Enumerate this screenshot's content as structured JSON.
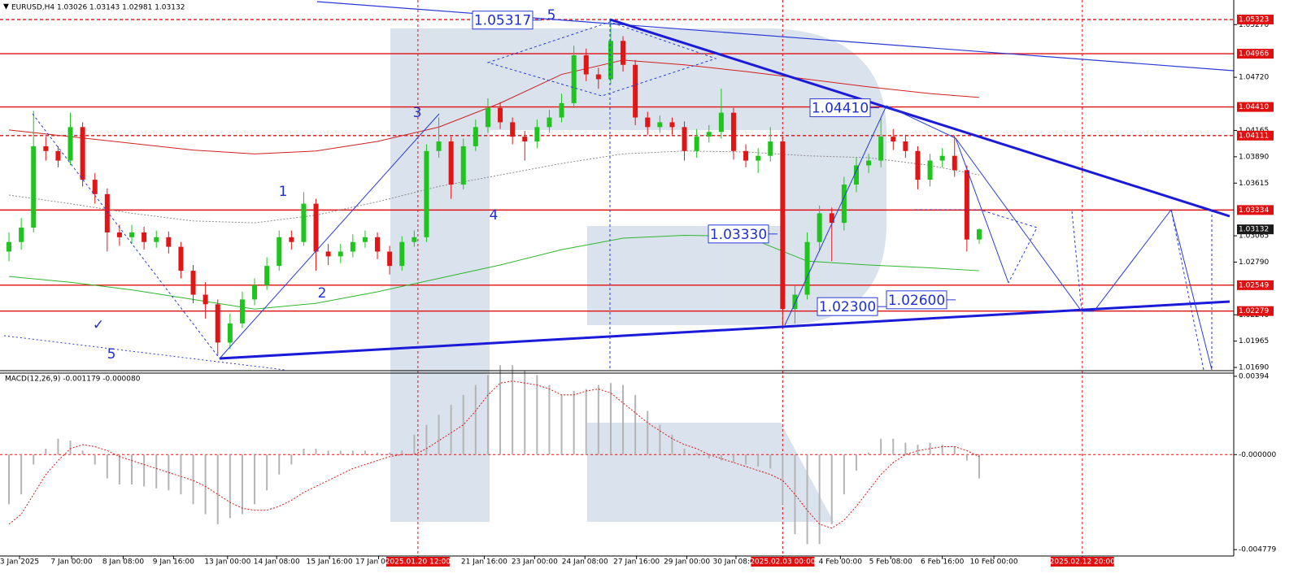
{
  "chart_data": {
    "type": "candlestick",
    "header": "EURUSD,H4  1.03026 1.03143 1.02981 1.03132",
    "colors": {
      "up": "#1fc41f",
      "down": "#e01515",
      "level": "#e01010",
      "vline": "#e01010",
      "last": "#1a1a1a"
    },
    "xlim": [
      -0.73,
      99.73
    ],
    "xticks": [
      {
        "value": 0.86,
        "label": "3 Jan 2025"
      },
      {
        "value": 5.1,
        "label": "7 Jan 00:00"
      },
      {
        "value": 9.3,
        "label": "8 Jan 08:00"
      },
      {
        "value": 13.4,
        "label": "9 Jan 16:00"
      },
      {
        "value": 17.8,
        "label": "13 Jan 00:00"
      },
      {
        "value": 21.8,
        "label": "14 Jan 08:00"
      },
      {
        "value": 26.1,
        "label": "15 Jan 16:00"
      },
      {
        "value": 30.1,
        "label": "17 Jan 00:00"
      },
      {
        "value": 33.3,
        "label": "2025.01.20 12:00"
      },
      {
        "value": 38.7,
        "label": "21 Jan 16:00"
      },
      {
        "value": 42.8,
        "label": "23 Jan 00:00"
      },
      {
        "value": 46.9,
        "label": "24 Jan 08:00"
      },
      {
        "value": 51.1,
        "label": "27 Jan 16:00"
      },
      {
        "value": 55.2,
        "label": "29 Jan 00:00"
      },
      {
        "value": 59.2,
        "label": "30 Jan 08:00"
      },
      {
        "value": 63,
        "label": "2025.02.03 00:00"
      },
      {
        "value": 67.7,
        "label": "4 Feb 00:00"
      },
      {
        "value": 71.8,
        "label": "5 Feb 08:00"
      },
      {
        "value": 76,
        "label": "6 Feb 16:00"
      },
      {
        "value": 80.2,
        "label": "10 Feb 00:00"
      },
      {
        "value": 87.4,
        "label": "2025.02.12 20:00"
      }
    ],
    "vlines": [
      33.3,
      63,
      87.4
    ],
    "ylim": [
      1.01665,
      1.05527
    ],
    "yticks": [
      {
        "value": 1.0527,
        "label": "1.05270"
      },
      {
        "value": 1.0472,
        "label": "1.04720"
      },
      1.04165,
      {
        "value": 1.0389,
        "label": "1.03890"
      },
      1.03615,
      1.03065,
      {
        "value": 1.0279,
        "label": "1.02790"
      },
      {
        "value": 1.0224,
        "label": "1.02240"
      },
      1.01965,
      {
        "value": 1.0169,
        "label": "1.01690"
      }
    ],
    "levels": [
      {
        "value": 1.05323,
        "dashed": true
      },
      {
        "value": 1.04966,
        "dashed": false
      },
      {
        "value": 1.0441,
        "label": "1.04410",
        "dashed": false
      },
      {
        "value": 1.04111,
        "dashed": true
      },
      {
        "value": 1.03334,
        "dashed": false
      },
      {
        "value": 1.02549,
        "dashed": false
      },
      {
        "value": 1.02279,
        "dashed": false
      }
    ],
    "last_price": 1.03132,
    "candles": {
      "open": [
        1.029,
        1.03,
        1.0315,
        1.04,
        1.0395,
        1.0385,
        1.042,
        1.0365,
        1.035,
        1.031,
        1.0305,
        1.031,
        1.03,
        1.0305,
        1.0295,
        1.027,
        1.0245,
        1.0235,
        1.0195,
        1.0215,
        1.024,
        1.0255,
        1.0275,
        1.0305,
        1.03,
        1.034,
        1.029,
        1.0285,
        1.029,
        1.03,
        1.0305,
        1.029,
        1.0275,
        1.03,
        1.0305,
        1.0395,
        1.0405,
        1.036,
        1.04,
        1.042,
        1.044,
        1.0425,
        1.041,
        1.0405,
        1.042,
        1.043,
        1.0445,
        1.0495,
        1.0475,
        1.047,
        1.051,
        1.0485,
        1.043,
        1.042,
        1.0425,
        1.042,
        1.0395,
        1.041,
        1.0415,
        1.0435,
        1.0395,
        1.0385,
        1.039,
        1.0405,
        1.023,
        1.0245,
        1.03,
        1.033,
        1.032,
        1.036,
        1.038,
        1.0385,
        1.041,
        1.0405,
        1.0395,
        1.0365,
        1.0385,
        1.039,
        1.0375,
        1.03026
      ],
      "high": [
        1.031,
        1.0325,
        1.0437,
        1.041,
        1.04,
        1.0435,
        1.0425,
        1.0372,
        1.0356,
        1.0318,
        1.0318,
        1.0316,
        1.0312,
        1.0311,
        1.03,
        1.0276,
        1.0258,
        1.024,
        1.0225,
        1.0248,
        1.0262,
        1.0284,
        1.0312,
        1.0312,
        1.0352,
        1.0345,
        1.0298,
        1.0298,
        1.0308,
        1.0312,
        1.031,
        1.0296,
        1.0306,
        1.0312,
        1.0402,
        1.043,
        1.041,
        1.0408,
        1.0428,
        1.045,
        1.0446,
        1.043,
        1.0416,
        1.0428,
        1.0438,
        1.0455,
        1.0505,
        1.0502,
        1.0482,
        1.0532,
        1.0515,
        1.049,
        1.0436,
        1.0432,
        1.043,
        1.0426,
        1.0418,
        1.0422,
        1.046,
        1.044,
        1.0402,
        1.0398,
        1.042,
        1.041,
        1.0255,
        1.031,
        1.0338,
        1.0336,
        1.0368,
        1.0388,
        1.0392,
        1.043,
        1.0418,
        1.0412,
        1.04,
        1.0392,
        1.0398,
        1.0411,
        1.038,
        1.03143
      ],
      "low": [
        1.028,
        1.0292,
        1.031,
        1.0385,
        1.0378,
        1.038,
        1.0358,
        1.034,
        1.029,
        1.0296,
        1.0298,
        1.0292,
        1.0294,
        1.0288,
        1.0262,
        1.0236,
        1.022,
        1.0182,
        1.0188,
        1.021,
        1.0234,
        1.025,
        1.027,
        1.0292,
        1.0296,
        1.027,
        1.0276,
        1.0278,
        1.0284,
        1.0294,
        1.0282,
        1.0266,
        1.027,
        1.0295,
        1.03,
        1.0388,
        1.0345,
        1.0355,
        1.0395,
        1.0414,
        1.0418,
        1.0402,
        1.0385,
        1.0398,
        1.0414,
        1.0425,
        1.044,
        1.0468,
        1.046,
        1.0465,
        1.0478,
        1.0422,
        1.0412,
        1.0414,
        1.0412,
        1.0385,
        1.0388,
        1.0404,
        1.0408,
        1.0386,
        1.0378,
        1.0372,
        1.0384,
        1.021,
        1.0215,
        1.024,
        1.029,
        1.028,
        1.0312,
        1.0352,
        1.0372,
        1.0378,
        1.0396,
        1.0388,
        1.0355,
        1.0358,
        1.0378,
        1.0368,
        1.029,
        1.02981
      ],
      "close": [
        1.03,
        1.0315,
        1.04,
        1.0395,
        1.0385,
        1.042,
        1.0365,
        1.035,
        1.031,
        1.0305,
        1.031,
        1.03,
        1.0305,
        1.0295,
        1.027,
        1.0245,
        1.0235,
        1.0195,
        1.0215,
        1.024,
        1.0255,
        1.0275,
        1.0305,
        1.03,
        1.034,
        1.029,
        1.0285,
        1.029,
        1.03,
        1.0305,
        1.029,
        1.0275,
        1.03,
        1.0305,
        1.0395,
        1.0405,
        1.036,
        1.04,
        1.042,
        1.044,
        1.0425,
        1.041,
        1.0405,
        1.042,
        1.043,
        1.0445,
        1.0495,
        1.0475,
        1.047,
        1.051,
        1.0485,
        1.043,
        1.042,
        1.0425,
        1.042,
        1.0395,
        1.041,
        1.0415,
        1.0435,
        1.0395,
        1.0385,
        1.039,
        1.0405,
        1.023,
        1.0245,
        1.03,
        1.033,
        1.032,
        1.036,
        1.038,
        1.0385,
        1.041,
        1.0405,
        1.0395,
        1.0365,
        1.0385,
        1.039,
        1.0375,
        1.03026,
        1.03132
      ]
    },
    "ma": [
      {
        "color": "#d02020",
        "dashed": false,
        "x": [
          0,
          5,
          10,
          15,
          20,
          25,
          30,
          35,
          40,
          45,
          50,
          55,
          60,
          65,
          70,
          75,
          79
        ],
        "values": [
          1.0417,
          1.041,
          1.0403,
          1.0396,
          1.0392,
          1.0395,
          1.0405,
          1.042,
          1.0445,
          1.0475,
          1.049,
          1.0485,
          1.0478,
          1.047,
          1.0462,
          1.0455,
          1.0451
        ]
      },
      {
        "color": "#2fb52f",
        "dashed": false,
        "x": [
          0,
          5,
          10,
          15,
          20,
          25,
          30,
          35,
          40,
          45,
          50,
          55,
          60,
          65,
          70,
          75,
          79
        ],
        "values": [
          1.0264,
          1.0258,
          1.025,
          1.024,
          1.023,
          1.0236,
          1.0248,
          1.0262,
          1.0276,
          1.0292,
          1.0304,
          1.0307,
          1.0306,
          1.028,
          1.0276,
          1.0273,
          1.027
        ]
      },
      {
        "color": "#8a8a8a",
        "dashed": true,
        "x": [
          0,
          5,
          10,
          15,
          20,
          25,
          30,
          35,
          40,
          45,
          50,
          55,
          60,
          65,
          70,
          75,
          79
        ],
        "values": [
          1.0349,
          1.034,
          1.033,
          1.0322,
          1.032,
          1.0328,
          1.0342,
          1.0358,
          1.037,
          1.0382,
          1.0392,
          1.0395,
          1.0394,
          1.039,
          1.0388,
          1.038,
          1.037
        ]
      }
    ],
    "annotations": [
      1.05317,
      {
        "value": 1.0441,
        "label": "1.04410"
      },
      {
        "value": 1.0333,
        "label": "1.03330"
      },
      {
        "value": 1.026,
        "label": "1.02600"
      },
      {
        "value": 1.023,
        "label": "1.02300"
      }
    ],
    "wave_labels": [
      "5",
      "3",
      "1",
      "4",
      "2",
      "5",
      "✓"
    ],
    "macd": {
      "header": "MACD(12,26,9) -0.001179 -0.000080",
      "hist_color": "#b4b4b4",
      "signal_color": "#e01515",
      "ylim": [
        -0.0051,
        0.0041
      ],
      "yticks": [
        0.00394,
        {
          "value": 0,
          "label": "-0.000000"
        },
        -0.004779
      ],
      "histogram": [
        -0.0025,
        -0.002,
        -0.0005,
        0.0003,
        0.0008,
        0.0007,
        0.0002,
        -0.0005,
        -0.0012,
        -0.0015,
        -0.0015,
        -0.0016,
        -0.0017,
        -0.0018,
        -0.002,
        -0.0025,
        -0.003,
        -0.0035,
        -0.0032,
        -0.003,
        -0.0025,
        -0.0018,
        -0.001,
        -0.0005,
        0.0003,
        0.0003,
        0.0002,
        0.0002,
        0.0002,
        0.0002,
        0.0001,
        0.0001,
        0.0002,
        0.001,
        0.0015,
        0.002,
        0.0025,
        0.003,
        0.0035,
        0.004,
        0.0045,
        0.0045,
        0.0042,
        0.004,
        0.0035,
        0.003,
        0.0032,
        0.0033,
        0.0035,
        0.0036,
        0.0035,
        0.003,
        0.0022,
        0.0015,
        0.001,
        0.0003,
        0.0001,
        -0.0002,
        -0.0003,
        -0.0004,
        -0.0005,
        -0.0006,
        -0.0007,
        -0.0025,
        -0.004,
        -0.0045,
        -0.0045,
        -0.0035,
        -0.002,
        -0.0008,
        0.0001,
        0.0008,
        0.0008,
        0.0006,
        0.0005,
        0.0006,
        0.0005,
        0.0004,
        -0.0003,
        -0.0012
      ],
      "signal": [
        -0.0035,
        -0.003,
        -0.002,
        -0.001,
        -0.0003,
        0.0003,
        0.0005,
        0.0004,
        0.0002,
        -0.0001,
        -0.0003,
        -0.0005,
        -0.0007,
        -0.0009,
        -0.0011,
        -0.0013,
        -0.0016,
        -0.002,
        -0.0024,
        -0.0027,
        -0.0028,
        -0.0028,
        -0.0026,
        -0.0023,
        -0.0019,
        -0.0016,
        -0.0013,
        -0.001,
        -0.0007,
        -0.0005,
        -0.0003,
        -0.0001,
        0,
        0,
        0.0003,
        0.0007,
        0.0011,
        0.0015,
        0.0022,
        0.003,
        0.0036,
        0.0037,
        0.0036,
        0.0035,
        0.0033,
        0.003,
        0.003,
        0.0032,
        0.0033,
        0.0031,
        0.0026,
        0.0021,
        0.0016,
        0.0012,
        0.0008,
        0.0005,
        0.0003,
        0,
        -0.0002,
        -0.0004,
        -0.0006,
        -0.0008,
        -0.001,
        -0.0013,
        -0.002,
        -0.0028,
        -0.0035,
        -0.0037,
        -0.0033,
        -0.0026,
        -0.0018,
        -0.001,
        -0.0004,
        0,
        0.0002,
        0.0003,
        0.0004,
        0.0004,
        0.0002,
        -0.0001
      ]
    }
  }
}
